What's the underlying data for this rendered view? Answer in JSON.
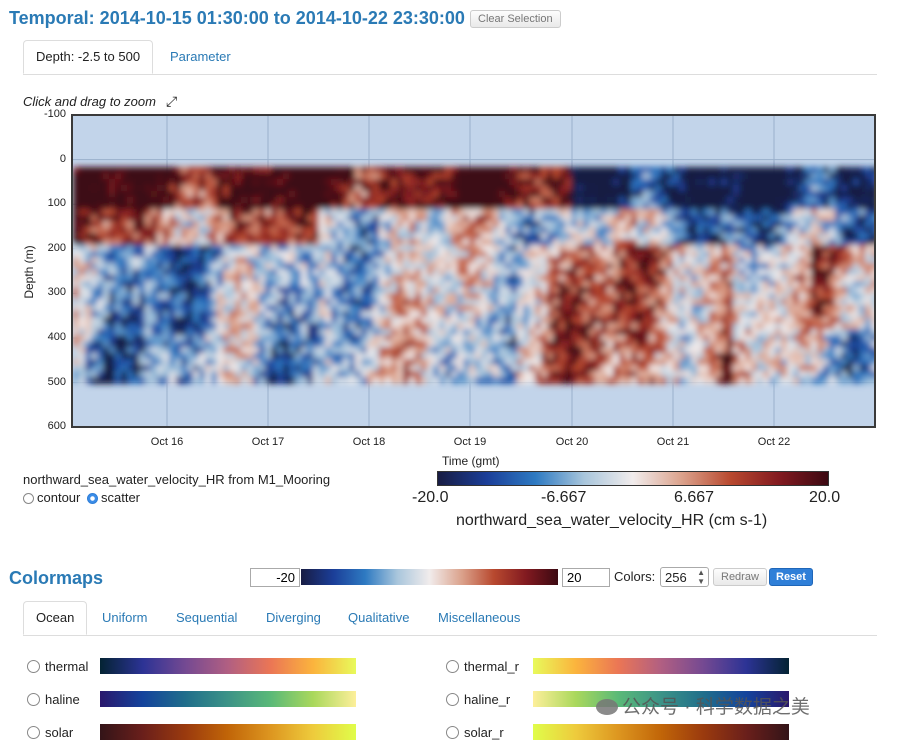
{
  "header": {
    "title": "Temporal: 2014-10-15 01:30:00 to 2014-10-22 23:30:00",
    "clear_label": "Clear Selection"
  },
  "top_tabs": [
    {
      "label": "Depth: -2.5 to 500",
      "active": true
    },
    {
      "label": "Parameter",
      "active": false
    }
  ],
  "plot": {
    "hint": "Click and drag to zoom",
    "ylabel": "Depth (m)",
    "xlabel": "Time (gmt)",
    "yticks": [
      "-100",
      "0",
      "100",
      "200",
      "300",
      "400",
      "500",
      "600"
    ],
    "xticks": [
      "Oct 16",
      "Oct 17",
      "Oct 18",
      "Oct 19",
      "Oct 20",
      "Oct 21",
      "Oct 22"
    ],
    "source_label": "northward_sea_water_velocity_HR from M1_Mooring",
    "mode_contour": "contour",
    "mode_scatter": "scatter",
    "selected_mode": "scatter"
  },
  "colorbar": {
    "ticks": [
      "-20.0",
      "-6.667",
      "6.667",
      "20.0"
    ],
    "label": "northward_sea_water_velocity_HR (cm s-1)"
  },
  "colormaps": {
    "title": "Colormaps",
    "min": "-20",
    "max": "20",
    "colors_label": "Colors:",
    "colors_value": "256",
    "redraw_label": "Redraw",
    "reset_label": "Reset",
    "tabs": [
      {
        "label": "Ocean",
        "active": true
      },
      {
        "label": "Uniform",
        "active": false
      },
      {
        "label": "Sequential",
        "active": false
      },
      {
        "label": "Diverging",
        "active": false
      },
      {
        "label": "Qualitative",
        "active": false
      },
      {
        "label": "Miscellaneous",
        "active": false
      }
    ],
    "items": [
      {
        "name": "thermal",
        "gradient": [
          "#042333",
          "#2c3395",
          "#744992",
          "#b15f82",
          "#eb7655",
          "#fbb43d",
          "#e8fa5b"
        ]
      },
      {
        "name": "thermal_r",
        "gradient": [
          "#e8fa5b",
          "#fbb43d",
          "#eb7655",
          "#b15f82",
          "#744992",
          "#2c3395",
          "#042333"
        ]
      },
      {
        "name": "haline",
        "gradient": [
          "#2a186c",
          "#14439c",
          "#206e8b",
          "#3c9387",
          "#5ab978",
          "#aad85c",
          "#fdef9a"
        ]
      },
      {
        "name": "haline_r",
        "gradient": [
          "#fdef9a",
          "#aad85c",
          "#5ab978",
          "#3c9387",
          "#206e8b",
          "#14439c",
          "#2a186c"
        ]
      },
      {
        "name": "solar",
        "gradient": [
          "#331418",
          "#6a1f1b",
          "#9a3a0e",
          "#c16508",
          "#dd9620",
          "#eecb3c",
          "#e0fd4a"
        ]
      },
      {
        "name": "solar_r",
        "gradient": [
          "#e0fd4a",
          "#eecb3c",
          "#dd9620",
          "#c16508",
          "#9a3a0e",
          "#6a1f1b",
          "#331418"
        ]
      }
    ]
  },
  "colors": {
    "accent": "#2a7ab5",
    "balance": [
      "#181c43",
      "#1b3e98",
      "#2e7ac2",
      "#a9c6dc",
      "#f1ecec",
      "#dba28c",
      "#b8492f",
      "#821a20",
      "#3c0912"
    ]
  },
  "watermark": "公众号 · 科学数据之美"
}
